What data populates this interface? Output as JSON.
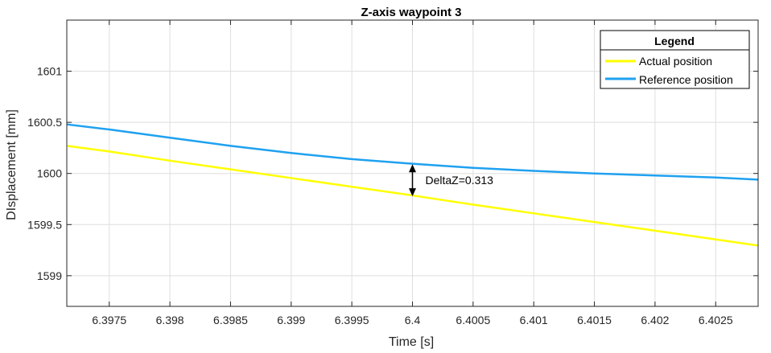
{
  "chart_data": {
    "type": "line",
    "title": "Z-axis waypoint 3",
    "xlabel": "Time [s]",
    "ylabel": "DIsplacement [mm]",
    "xlim": [
      6.39715,
      6.40285
    ],
    "ylim": [
      1598.7,
      1601.5
    ],
    "xticks": [
      6.3975,
      6.398,
      6.3985,
      6.399,
      6.3995,
      6.4,
      6.4005,
      6.401,
      6.4015,
      6.402,
      6.4025
    ],
    "xtick_labels": [
      "6.3975",
      "6.398",
      "6.3985",
      "6.399",
      "6.3995",
      "6.4",
      "6.4005",
      "6.401",
      "6.4015",
      "6.402",
      "6.4025"
    ],
    "yticks": [
      1599,
      1599.5,
      1600,
      1600.5,
      1601
    ],
    "ytick_labels": [
      "1599",
      "1599.5",
      "1600",
      "1600.5",
      "1601"
    ],
    "grid": true,
    "legend_title": "Legend",
    "legend_position": "top-right",
    "series": [
      {
        "name": "Actual position",
        "color": "#ffff00",
        "x": [
          6.39715,
          6.3975,
          6.398,
          6.3985,
          6.399,
          6.3995,
          6.4,
          6.4005,
          6.401,
          6.4015,
          6.402,
          6.4025,
          6.40285
        ],
        "y": [
          1600.27,
          1600.215,
          1600.125,
          1600.04,
          1599.955,
          1599.87,
          1599.785,
          1599.695,
          1599.61,
          1599.525,
          1599.44,
          1599.355,
          1599.295
        ]
      },
      {
        "name": "Reference position",
        "color": "#1fa1f0",
        "x": [
          6.39715,
          6.3975,
          6.398,
          6.3985,
          6.399,
          6.3995,
          6.4,
          6.4005,
          6.401,
          6.4015,
          6.402,
          6.4025,
          6.40285
        ],
        "y": [
          1600.48,
          1600.43,
          1600.35,
          1600.27,
          1600.2,
          1600.14,
          1600.095,
          1600.055,
          1600.025,
          1600.0,
          1599.98,
          1599.96,
          1599.94
        ]
      }
    ],
    "annotation": {
      "text": "DeltaZ=0.313",
      "x": 6.4,
      "y_top": 1600.09,
      "y_bottom": 1599.777
    }
  }
}
